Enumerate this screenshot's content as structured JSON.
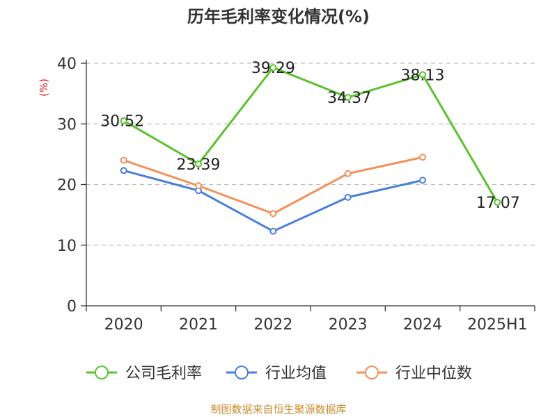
{
  "chart_data": {
    "type": "line",
    "title": "历年毛利率变化情况(%)",
    "ylabel": "(%)",
    "ylabel_color": "#e02020",
    "ylim": [
      0,
      40
    ],
    "y_ticks": [
      "0",
      "10",
      "20",
      "30",
      "40"
    ],
    "grid": true,
    "legend_position": "bottom",
    "categories": [
      "2020",
      "2021",
      "2022",
      "2023",
      "2024",
      "2025H1"
    ],
    "series": [
      {
        "name": "公司毛利率",
        "color": "#5bc22f",
        "values": [
          30.52,
          23.39,
          39.29,
          34.37,
          38.13,
          17.07
        ],
        "labels": [
          "30.52",
          "23.39",
          "39.29",
          "34.37",
          "38.13",
          "17.07"
        ],
        "show_labels": true
      },
      {
        "name": "行业均值",
        "color": "#4a7fd9",
        "values": [
          22.3,
          19.0,
          12.3,
          17.9,
          20.7,
          null
        ],
        "show_labels": false
      },
      {
        "name": "行业中位数",
        "color": "#f4905a",
        "values": [
          24.0,
          19.8,
          15.2,
          21.8,
          24.5,
          null
        ],
        "show_labels": false
      }
    ]
  },
  "source": {
    "text": "制图数据来自恒生聚源数据库",
    "color": "#c98a2a"
  }
}
